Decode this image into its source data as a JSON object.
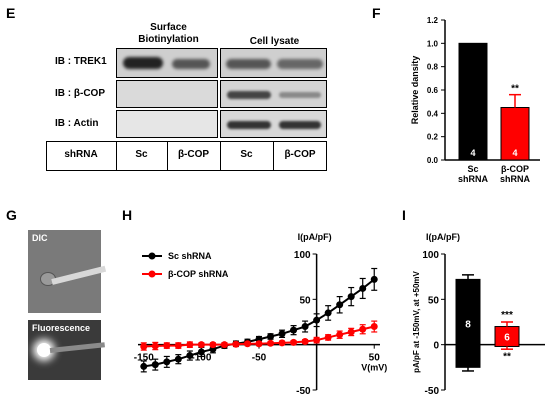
{
  "panels": {
    "E": "E",
    "F": "F",
    "G": "G",
    "H": "H",
    "I": "I"
  },
  "panelE": {
    "col_headers": [
      "Surface\nBiotinylation",
      "Cell lysate"
    ],
    "row_labels": [
      "IB : TREK1",
      "IB : β-COP",
      "IB : Actin"
    ],
    "table_labels": [
      "shRNA",
      "Sc",
      "β-COP",
      "Sc",
      "β-COP"
    ]
  },
  "panelG": {
    "labels": [
      "DIC",
      "Fluorescence"
    ]
  },
  "chart_data": [
    {
      "id": "F",
      "type": "bar",
      "categories": [
        "Sc\nshRNA",
        "β-COP\nshRNA"
      ],
      "values": [
        1.0,
        0.45
      ],
      "errors": [
        0,
        0.11
      ],
      "n_labels": [
        "4",
        "4"
      ],
      "colors": [
        "#000000",
        "#ff0000"
      ],
      "significance": [
        "",
        "**"
      ],
      "ylabel": "Relative dansity",
      "ylim": [
        0,
        1.2
      ],
      "yticks": [
        "0.0",
        "0.2",
        "0.4",
        "0.6",
        "0.8",
        "1.0",
        "1.2"
      ]
    },
    {
      "id": "H",
      "type": "line",
      "title": "I(pA/pF)",
      "xlabel": "V(mV)",
      "xlim": [
        -155,
        55
      ],
      "ylim": [
        -50,
        100
      ],
      "xticks": [
        "-150",
        "-100",
        "-50",
        "0",
        "50"
      ],
      "yticks": [
        "-50",
        "0",
        "50",
        "100"
      ],
      "x": [
        -150,
        -140,
        -130,
        -120,
        -110,
        -100,
        -90,
        -80,
        -70,
        -60,
        -50,
        -40,
        -30,
        -20,
        -10,
        0,
        10,
        20,
        30,
        40,
        50
      ],
      "series": [
        {
          "name": "Sc shRNA",
          "color": "#000000",
          "values": [
            -24,
            -22,
            -19,
            -16,
            -12,
            -8,
            -5,
            -1,
            1,
            3,
            6,
            9,
            12,
            16,
            20,
            27,
            35,
            44,
            53,
            62,
            72
          ],
          "errors": [
            6,
            6,
            6,
            5,
            5,
            5,
            4,
            3,
            3,
            3,
            3,
            3,
            4,
            5,
            6,
            7,
            8,
            9,
            10,
            11,
            12
          ]
        },
        {
          "name": "β-COP shRNA",
          "color": "#ff0000",
          "values": [
            -2,
            -1.5,
            -1,
            -1,
            0,
            0,
            0,
            0,
            0.5,
            1,
            1,
            1.5,
            2,
            2.5,
            3.5,
            5,
            8,
            11,
            14,
            17,
            20
          ],
          "errors": [
            4,
            4,
            3,
            3,
            3,
            2,
            2,
            2,
            2,
            2,
            2,
            2,
            2,
            2,
            2,
            3,
            3,
            4,
            4,
            5,
            6
          ]
        }
      ]
    },
    {
      "id": "I",
      "type": "bar",
      "title": "I(pA/pF)",
      "ylabel": "pA/pF at -150mV, at +50mV",
      "ylim": [
        -50,
        100
      ],
      "yticks": [
        "-50",
        "0",
        "50",
        "100"
      ],
      "bars": [
        {
          "color": "#000000",
          "top": 72,
          "bottom": -25,
          "top_err": 5,
          "bottom_err": 4,
          "n": "8"
        },
        {
          "color": "#ff0000",
          "top": 20,
          "bottom": -2,
          "top_err": 5,
          "bottom_err": 3,
          "n": "6"
        }
      ],
      "significance": [
        "***",
        "**"
      ]
    }
  ]
}
